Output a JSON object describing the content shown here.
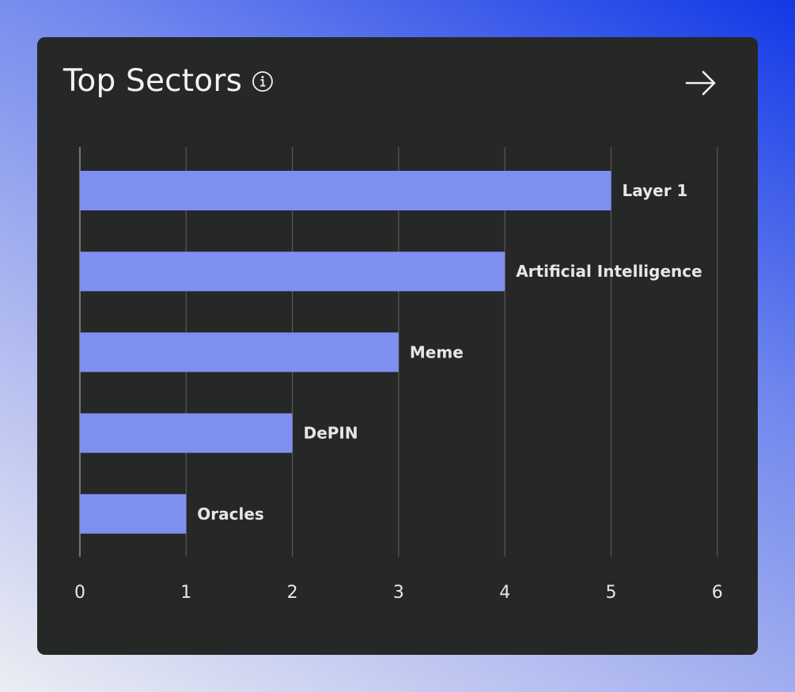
{
  "card": {
    "title": "Top Sectors",
    "info_icon": "info-circle-icon",
    "arrow_icon": "arrow-right-icon"
  },
  "colors": {
    "bar": "#7f8ff0",
    "card_bg": "#262727",
    "grid": "#5a5a5a",
    "text": "#e8e8e8"
  },
  "chart_data": {
    "type": "bar",
    "orientation": "horizontal",
    "categories": [
      "Layer 1",
      "Artificial Intelligence",
      "Meme",
      "DePIN",
      "Oracles"
    ],
    "values": [
      5,
      4,
      3,
      2,
      1
    ],
    "xlim": [
      0,
      6
    ],
    "xticks": [
      "0",
      "1",
      "2",
      "3",
      "4",
      "5",
      "6"
    ],
    "grid": true,
    "legend": "none",
    "title": "Top Sectors"
  }
}
